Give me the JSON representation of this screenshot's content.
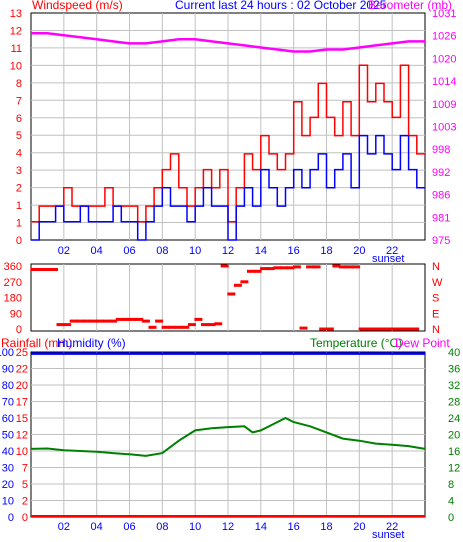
{
  "header": {
    "windspeed_label": "Windspeed (m/s)",
    "current_label": "Current last 24 hours : 02 October 2025",
    "barometer_label": "Barometer (mb)",
    "rainfall_label": "Rainfall (mm)",
    "humidity_label": "Humidity (%)",
    "temperature_label": "Temperature (°C)",
    "dewpoint_label": "Dew Point",
    "sunset_label_top": "sunset",
    "sunset_label_bottom": "sunset"
  },
  "colors": {
    "windspeed": "#0000ff",
    "gust": "#ff0000",
    "barometer": "#ff00ff",
    "direction": "#ff0000",
    "rainfall": "#ff0000",
    "humidity": "#0000ff",
    "temperature": "#008000",
    "dewpoint": "#ff00ff",
    "grid": "#c0c0c0",
    "axis_text": "#ff0000",
    "temp_axis_text": "#008000",
    "humidity_axis_text": "#0000ff"
  },
  "chart_data": [
    {
      "type": "line",
      "name": "wind-and-pressure",
      "x_ticks": [
        "02",
        "04",
        "06",
        "08",
        "10",
        "12",
        "14",
        "16",
        "18",
        "20",
        "22"
      ],
      "x_range_hours": [
        0,
        24
      ],
      "y_left_ticks": [
        "0",
        "1",
        "1",
        "2",
        "3",
        "4",
        "5",
        "6",
        "7",
        "8",
        "10",
        "11",
        "12",
        "13"
      ],
      "y_left_values": [
        0,
        0.7,
        1.3,
        2,
        2.7,
        3.3,
        4,
        4.7,
        5.3,
        6,
        6.7,
        7.3,
        8,
        8.7
      ],
      "y_right_ticks": [
        "975",
        "981",
        "986",
        "992",
        "998",
        "1003",
        "1009",
        "1014",
        "1020",
        "1026",
        "1031"
      ],
      "y_right_range": [
        975,
        1031
      ],
      "series": [
        {
          "name": "Barometer",
          "x": [
            0,
            1,
            2,
            3,
            4,
            5,
            6,
            7,
            8,
            9,
            10,
            11,
            12,
            13,
            14,
            15,
            16,
            17,
            18,
            19,
            20,
            21,
            22,
            23,
            24
          ],
          "values": [
            1026,
            1026,
            1025.5,
            1025,
            1024.5,
            1024,
            1023.5,
            1023.5,
            1024,
            1024.5,
            1024.5,
            1024,
            1023.5,
            1023,
            1022.5,
            1022,
            1021.5,
            1021.5,
            1022,
            1022,
            1022.5,
            1023,
            1023.5,
            1024,
            1024
          ]
        },
        {
          "name": "Gust",
          "x": [
            0,
            0.5,
            1,
            1.5,
            2,
            2.5,
            3,
            3.5,
            4,
            4.5,
            5,
            5.5,
            6,
            6.5,
            7,
            7.5,
            8,
            8.5,
            9,
            9.5,
            10,
            10.5,
            11,
            11.5,
            12,
            12.5,
            13,
            13.5,
            14,
            14.5,
            15,
            15.5,
            16,
            16.5,
            17,
            17.5,
            18,
            18.5,
            19,
            19.5,
            20,
            20.5,
            21,
            21.5,
            22,
            22.5,
            23,
            23.5
          ],
          "values": [
            0.7,
            1.3,
            1.3,
            1.3,
            2,
            1.3,
            1.3,
            1.3,
            1.3,
            2,
            1.3,
            1.3,
            1.3,
            0.7,
            1.3,
            2,
            2.7,
            3.3,
            2,
            1.3,
            2,
            2.7,
            2,
            2.7,
            0.7,
            2,
            3.3,
            2.7,
            4,
            3.3,
            2.7,
            3.3,
            5.3,
            4,
            4.7,
            6,
            4.7,
            4,
            5.3,
            4,
            6.7,
            5.3,
            6,
            5.3,
            4.7,
            6.7,
            4,
            3.3
          ]
        },
        {
          "name": "Windspeed",
          "x": [
            0,
            0.5,
            1,
            1.5,
            2,
            2.5,
            3,
            3.5,
            4,
            4.5,
            5,
            5.5,
            6,
            6.5,
            7,
            7.5,
            8,
            8.5,
            9,
            9.5,
            10,
            10.5,
            11,
            11.5,
            12,
            12.5,
            13,
            13.5,
            14,
            14.5,
            15,
            15.5,
            16,
            16.5,
            17,
            17.5,
            18,
            18.5,
            19,
            19.5,
            20,
            20.5,
            21,
            21.5,
            22,
            22.5,
            23,
            23.5
          ],
          "values": [
            0,
            0.7,
            0.7,
            1.3,
            0.7,
            0.7,
            1.3,
            0.7,
            0.7,
            0.7,
            1.3,
            0.7,
            0.7,
            0,
            0.7,
            1.3,
            2,
            1.3,
            1.3,
            0.7,
            1.3,
            2,
            1.3,
            1.3,
            0,
            1.3,
            2,
            1.3,
            2.7,
            2,
            1.3,
            2,
            2.7,
            2,
            2.7,
            3.3,
            2,
            2.7,
            3.3,
            2,
            4,
            3.3,
            4,
            3.3,
            2.7,
            4,
            2.7,
            2
          ]
        }
      ],
      "annotations": [
        "sunset"
      ]
    },
    {
      "type": "scatter",
      "name": "wind-direction",
      "x_range_hours": [
        0,
        24
      ],
      "y_left_ticks": [
        "360",
        "270",
        "180",
        "90",
        "0"
      ],
      "y_range": [
        0,
        360
      ],
      "y_right_ticks": [
        "N",
        "W",
        "S",
        "E",
        "N"
      ],
      "series": [
        {
          "name": "Direction",
          "x": [
            0.2,
            0.6,
            1,
            1.4,
            1.8,
            2.2,
            2.6,
            3,
            3.4,
            3.8,
            4.2,
            4.6,
            5,
            5.4,
            5.8,
            6.2,
            6.6,
            7,
            7.4,
            7.8,
            8.2,
            8.6,
            9,
            9.4,
            9.8,
            10.2,
            10.6,
            11,
            11.4,
            11.8,
            12.2,
            12.6,
            13,
            13.4,
            13.8,
            14.2,
            14.6,
            15,
            15.4,
            15.8,
            16.2,
            16.6,
            17,
            17.4,
            17.8,
            18.2,
            18.6,
            19,
            19.4,
            19.8,
            20.2,
            20.6,
            21,
            21.4,
            21.8,
            22.2,
            22.6,
            23,
            23.4
          ],
          "values": [
            340,
            340,
            340,
            340,
            25,
            25,
            45,
            45,
            45,
            45,
            45,
            45,
            45,
            55,
            55,
            55,
            55,
            45,
            10,
            45,
            10,
            10,
            10,
            10,
            25,
            55,
            25,
            25,
            30,
            360,
            200,
            250,
            270,
            330,
            330,
            345,
            345,
            350,
            350,
            350,
            355,
            5,
            355,
            355,
            0,
            0,
            360,
            355,
            355,
            355,
            0,
            0,
            0,
            0,
            0,
            0,
            0,
            0,
            0
          ]
        }
      ]
    },
    {
      "type": "line",
      "name": "rain-humidity-temperature",
      "x_ticks": [
        "02",
        "04",
        "06",
        "08",
        "10",
        "12",
        "14",
        "16",
        "18",
        "20",
        "22"
      ],
      "x_range_hours": [
        0,
        24
      ],
      "y_left_outer_ticks": [
        "0",
        "10",
        "20",
        "30",
        "40",
        "50",
        "60",
        "70",
        "80",
        "90",
        "100"
      ],
      "y_left_inner_ticks": [
        "0",
        "2",
        "5",
        "7",
        "10",
        "12",
        "15",
        "17",
        "20",
        "22",
        "25"
      ],
      "y_right_ticks": [
        "0",
        "4",
        "8",
        "12",
        "16",
        "20",
        "24",
        "28",
        "32",
        "36",
        "40"
      ],
      "temp_range": [
        0,
        40
      ],
      "series": [
        {
          "name": "Temperature",
          "x": [
            0,
            1,
            2,
            3,
            4,
            5,
            6,
            7,
            8,
            9,
            10,
            11,
            12,
            13,
            13.5,
            14,
            15,
            15.5,
            16,
            17,
            18,
            19,
            20,
            21,
            22,
            23,
            24
          ],
          "values": [
            16.5,
            16.6,
            16.2,
            16.0,
            15.8,
            15.5,
            15.2,
            14.8,
            15.5,
            18.5,
            21.0,
            21.5,
            21.8,
            22.0,
            20.5,
            21.0,
            23.0,
            24.0,
            23.0,
            22.0,
            20.5,
            19.0,
            18.5,
            17.8,
            17.5,
            17.2,
            16.5
          ]
        },
        {
          "name": "Humidity",
          "x": [
            0,
            24
          ],
          "values": [
            99,
            99
          ]
        },
        {
          "name": "Rainfall",
          "x": [
            0,
            24
          ],
          "values": [
            0,
            0
          ]
        }
      ],
      "annotations": [
        "sunset"
      ]
    }
  ]
}
